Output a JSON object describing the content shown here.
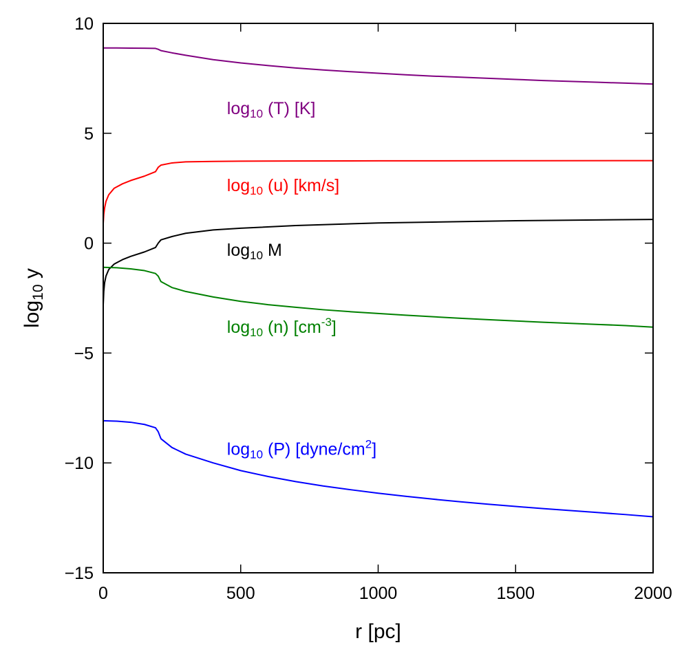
{
  "chart_data": {
    "type": "line",
    "xlabel": "r [pc]",
    "ylabel": {
      "prefix": "log",
      "sub": "10",
      "suffix": " y"
    },
    "xlim": [
      0,
      2000
    ],
    "ylim": [
      -15,
      10
    ],
    "xticks": [
      0,
      500,
      1000,
      1500,
      2000
    ],
    "yticks": [
      -15,
      -10,
      -5,
      0,
      5,
      10
    ],
    "xtick_labels": [
      "0",
      "500",
      "1000",
      "1500",
      "2000"
    ],
    "ytick_labels": [
      "−15",
      "−10",
      "−5",
      "0",
      "5",
      "10"
    ],
    "grid": false,
    "legend": "none",
    "series": [
      {
        "key": "T",
        "color": "#800080",
        "label": {
          "prefix": "log",
          "sub": "10",
          "mid": " (T) [K]",
          "sup": "",
          "post": "",
          "x": 450,
          "y": 6.15
        },
        "x": [
          0,
          50,
          100,
          150,
          190,
          200,
          210,
          250,
          300,
          400,
          500,
          600,
          700,
          800,
          900,
          1000,
          1100,
          1200,
          1300,
          1400,
          1500,
          1600,
          1700,
          1800,
          1900,
          2000
        ],
        "y": [
          8.88,
          8.88,
          8.875,
          8.87,
          8.86,
          8.82,
          8.76,
          8.66,
          8.55,
          8.35,
          8.2,
          8.08,
          7.97,
          7.88,
          7.8,
          7.73,
          7.66,
          7.6,
          7.55,
          7.5,
          7.45,
          7.4,
          7.36,
          7.32,
          7.28,
          7.24
        ]
      },
      {
        "key": "u",
        "color": "#ff0000",
        "label": {
          "prefix": "log",
          "sub": "10",
          "mid": " (u) [km/s]",
          "sup": "",
          "post": "",
          "x": 450,
          "y": 2.65
        },
        "x": [
          0,
          2,
          5,
          10,
          20,
          40,
          70,
          100,
          150,
          190,
          200,
          210,
          250,
          300,
          400,
          500,
          700,
          1000,
          1500,
          2000
        ],
        "y": [
          0.9,
          1.3,
          1.6,
          1.9,
          2.2,
          2.5,
          2.7,
          2.85,
          3.05,
          3.25,
          3.45,
          3.55,
          3.65,
          3.7,
          3.72,
          3.73,
          3.74,
          3.745,
          3.75,
          3.755
        ]
      },
      {
        "key": "M",
        "color": "#000000",
        "label": {
          "prefix": "log",
          "sub": "10",
          "mid": " M",
          "sup": "",
          "post": "",
          "x": 450,
          "y": -0.3
        },
        "x": [
          0,
          2,
          5,
          10,
          20,
          40,
          70,
          100,
          150,
          190,
          200,
          210,
          250,
          300,
          400,
          500,
          700,
          1000,
          1500,
          2000
        ],
        "y": [
          -2.8,
          -2.2,
          -1.8,
          -1.5,
          -1.2,
          -0.95,
          -0.75,
          -0.6,
          -0.4,
          -0.2,
          0.0,
          0.15,
          0.3,
          0.45,
          0.6,
          0.68,
          0.8,
          0.92,
          1.02,
          1.08
        ]
      },
      {
        "key": "n",
        "color": "#008000",
        "label": {
          "prefix": "log",
          "sub": "10",
          "mid": " (n) [cm",
          "sup": "-3",
          "post": "]",
          "x": 450,
          "y": -3.8
        },
        "x": [
          0,
          50,
          100,
          150,
          190,
          200,
          210,
          250,
          300,
          400,
          500,
          600,
          700,
          800,
          900,
          1000,
          1100,
          1200,
          1300,
          1400,
          1500,
          1600,
          1700,
          1800,
          1900,
          2000
        ],
        "y": [
          -1.1,
          -1.12,
          -1.17,
          -1.25,
          -1.38,
          -1.5,
          -1.75,
          -2.02,
          -2.2,
          -2.45,
          -2.65,
          -2.8,
          -2.92,
          -3.03,
          -3.12,
          -3.2,
          -3.28,
          -3.35,
          -3.42,
          -3.48,
          -3.54,
          -3.6,
          -3.65,
          -3.7,
          -3.75,
          -3.82
        ]
      },
      {
        "key": "P",
        "color": "#0000ff",
        "label": {
          "prefix": "log",
          "sub": "10",
          "mid": " (P) [dyne/cm",
          "sup": "2",
          "post": "]",
          "x": 450,
          "y": -9.35
        },
        "x": [
          0,
          50,
          100,
          150,
          190,
          200,
          210,
          250,
          300,
          400,
          500,
          600,
          700,
          800,
          900,
          1000,
          1100,
          1200,
          1300,
          1400,
          1500,
          1600,
          1700,
          1800,
          1900,
          2000
        ],
        "y": [
          -8.08,
          -8.1,
          -8.15,
          -8.25,
          -8.4,
          -8.58,
          -8.9,
          -9.3,
          -9.6,
          -10.0,
          -10.35,
          -10.62,
          -10.85,
          -11.05,
          -11.22,
          -11.38,
          -11.52,
          -11.65,
          -11.77,
          -11.88,
          -11.98,
          -12.08,
          -12.17,
          -12.26,
          -12.35,
          -12.45
        ]
      }
    ]
  }
}
